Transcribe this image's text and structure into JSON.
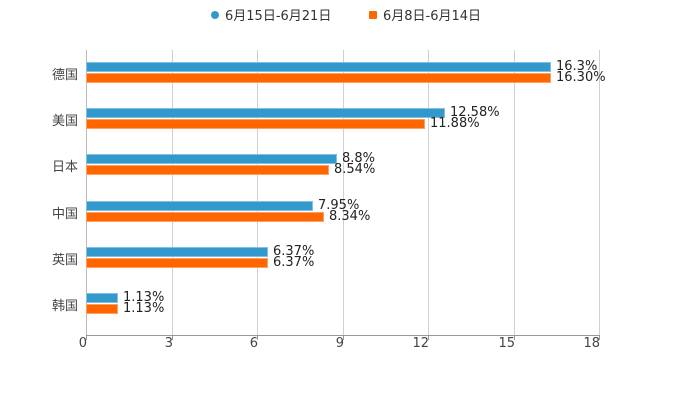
{
  "legend": {
    "series_a": {
      "label": "6月15日-6月21日",
      "color": "#3399cc",
      "marker": "circle"
    },
    "series_b": {
      "label": "6月8日-6月14日",
      "color": "#ff6600",
      "marker": "square"
    }
  },
  "axis": {
    "ticks": [
      "0",
      "3",
      "6",
      "9",
      "12",
      "15",
      "18"
    ]
  },
  "categories": [
    {
      "name": "德国",
      "a": "16.3%",
      "b": "16.30%"
    },
    {
      "name": "美国",
      "a": "12.58%",
      "b": "11.88%"
    },
    {
      "name": "日本",
      "a": "8.8%",
      "b": "8.54%"
    },
    {
      "name": "中国",
      "a": "7.95%",
      "b": "8.34%"
    },
    {
      "name": "英国",
      "a": "6.37%",
      "b": "6.37%"
    },
    {
      "name": "韩国",
      "a": "1.13%",
      "b": "1.13%"
    }
  ],
  "chart_data": {
    "type": "bar",
    "orientation": "horizontal",
    "title": "",
    "xlabel": "",
    "ylabel": "",
    "categories": [
      "德国",
      "美国",
      "日本",
      "中国",
      "英国",
      "韩国"
    ],
    "series": [
      {
        "name": "6月15日-6月21日",
        "color": "#3399cc",
        "values": [
          16.3,
          12.58,
          8.8,
          7.95,
          6.37,
          1.13
        ]
      },
      {
        "name": "6月8日-6月14日",
        "color": "#ff6600",
        "values": [
          16.3,
          11.88,
          8.54,
          8.34,
          6.37,
          1.13
        ]
      }
    ],
    "xlim": [
      0,
      18
    ],
    "xticks": [
      0,
      3,
      6,
      9,
      12,
      15,
      18
    ],
    "grid": true,
    "legend_position": "top",
    "data_labels": true
  }
}
